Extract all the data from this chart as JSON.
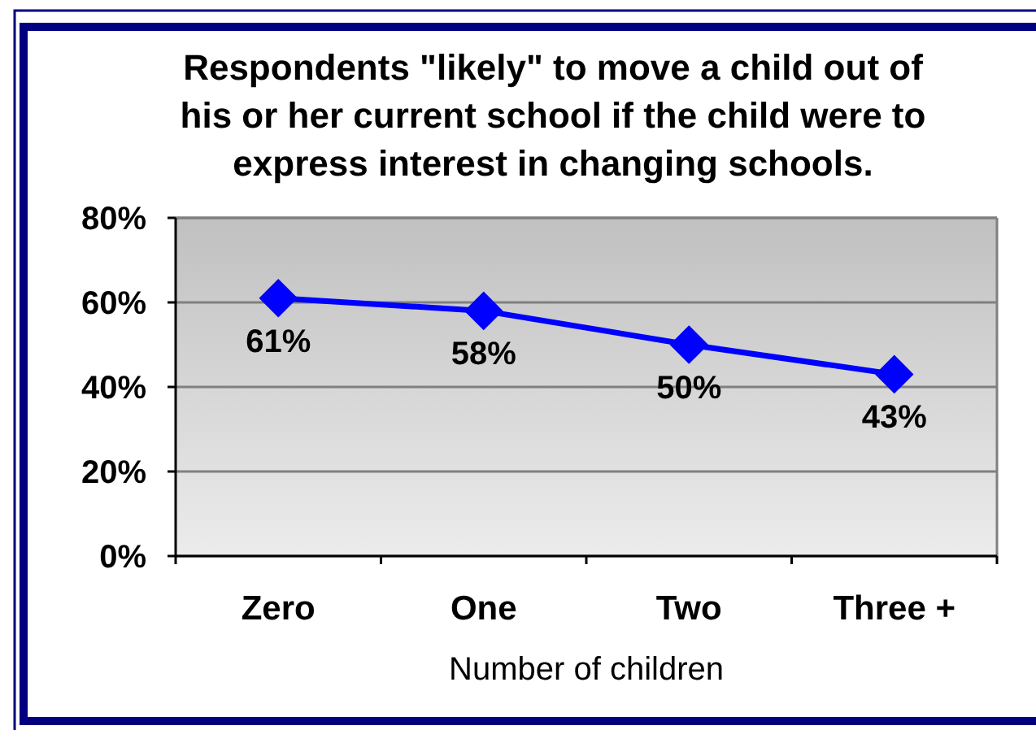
{
  "chart_data": {
    "type": "line",
    "title": "Respondents \"likely\" to move a child out of his or her current school if the child were to express interest in changing schools.",
    "xlabel": "Number of children",
    "categories": [
      "Zero",
      "One",
      "Two",
      "Three +"
    ],
    "series": [
      {
        "color": "#0000ff",
        "values": [
          61,
          58,
          50,
          43
        ],
        "value_labels": [
          "61%",
          "58%",
          "50%",
          "43%"
        ]
      }
    ],
    "ylim": [
      0,
      80
    ],
    "yticks": [
      {
        "value": 0,
        "label": "0%"
      },
      {
        "value": 20,
        "label": "20%"
      },
      {
        "value": 40,
        "label": "40%"
      },
      {
        "value": 60,
        "label": "60%"
      },
      {
        "value": 80,
        "label": "80%"
      }
    ],
    "grid": "y",
    "marker": "diamond",
    "line_style": "solid"
  }
}
